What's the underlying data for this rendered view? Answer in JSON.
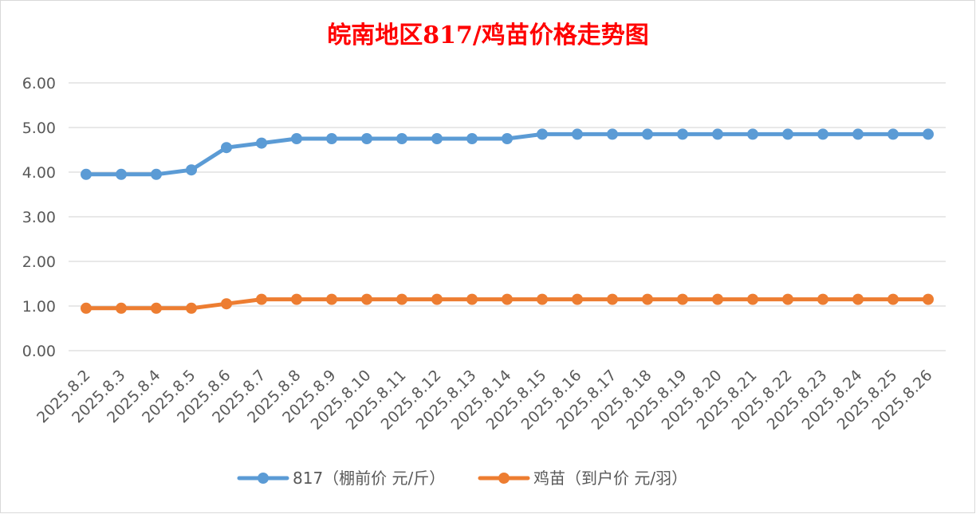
{
  "chart_data": {
    "type": "line",
    "title": "皖南地区817/鸡苗价格走势图",
    "categories": [
      "2025.8.2",
      "2025.8.3",
      "2025.8.4",
      "2025.8.5",
      "2025.8.6",
      "2025.8.7",
      "2025.8.8",
      "2025.8.9",
      "2025.8.10",
      "2025.8.11",
      "2025.8.12",
      "2025.8.13",
      "2025.8.14",
      "2025.8.15",
      "2025.8.16",
      "2025.8.17",
      "2025.8.18",
      "2025.8.19",
      "2025.8.20",
      "2025.8.21",
      "2025.8.22",
      "2025.8.23",
      "2025.8.24",
      "2025.8.25",
      "2025.8.26"
    ],
    "series": [
      {
        "name": "817（棚前价 元/斤）",
        "color": "#5B9BD5",
        "values": [
          3.95,
          3.95,
          3.95,
          4.05,
          4.55,
          4.65,
          4.75,
          4.75,
          4.75,
          4.75,
          4.75,
          4.75,
          4.75,
          4.85,
          4.85,
          4.85,
          4.85,
          4.85,
          4.85,
          4.85,
          4.85,
          4.85,
          4.85,
          4.85,
          4.85
        ]
      },
      {
        "name": "鸡苗（到户价 元/羽）",
        "color": "#ED7D31",
        "values": [
          0.95,
          0.95,
          0.95,
          0.95,
          1.05,
          1.15,
          1.15,
          1.15,
          1.15,
          1.15,
          1.15,
          1.15,
          1.15,
          1.15,
          1.15,
          1.15,
          1.15,
          1.15,
          1.15,
          1.15,
          1.15,
          1.15,
          1.15,
          1.15,
          1.15
        ]
      }
    ],
    "ylim": [
      0,
      6
    ],
    "yticks": [
      "0.00",
      "1.00",
      "2.00",
      "3.00",
      "4.00",
      "5.00",
      "6.00"
    ],
    "grid": true,
    "legend_position": "bottom",
    "title_color": "#FF0000",
    "axis_text_color": "#595959",
    "grid_color": "#D9D9D9"
  }
}
